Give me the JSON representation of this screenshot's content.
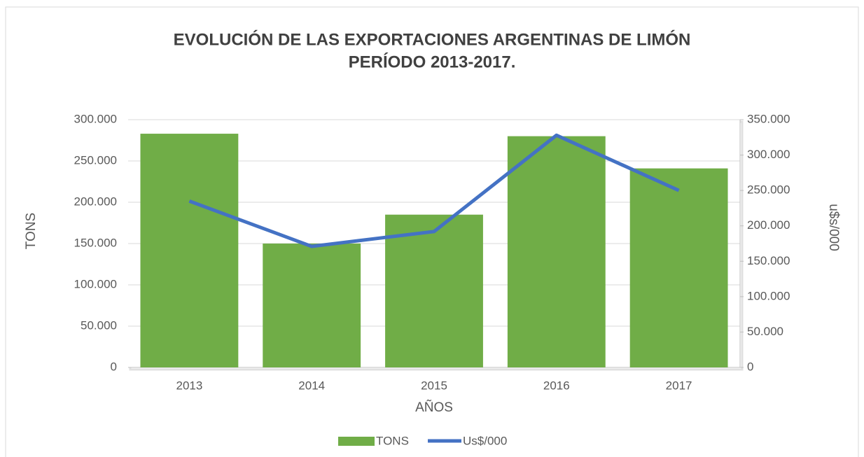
{
  "chart_data": {
    "type": "bar_line",
    "title": [
      "EVOLUCIÓN DE LAS EXPORTACIONES ARGENTINAS DE LIMÓN",
      "PERÍODO 2013-2017."
    ],
    "xlabel": "AÑOS",
    "ylabel": "TONS",
    "y2label": "u$s/000",
    "categories": [
      "2013",
      "2014",
      "2015",
      "2016",
      "2017"
    ],
    "series": [
      {
        "name": "TONS",
        "type": "bar",
        "color": "#70ad47",
        "values": [
          283000,
          150000,
          185000,
          280000,
          241000
        ]
      },
      {
        "name": "Us$/000",
        "type": "line",
        "axis": "y2",
        "color": "#4472c4",
        "values": [
          235000,
          171000,
          192000,
          328000,
          250000
        ]
      }
    ],
    "ylim": [
      0,
      300000
    ],
    "yticks": [
      0,
      {
        "value": 50000,
        "label": "50.000"
      },
      {
        "value": 100000,
        "label": "100.000"
      },
      {
        "value": 150000,
        "label": "150.000"
      },
      {
        "value": 200000,
        "label": "200.000"
      },
      {
        "value": 250000,
        "label": "250.000"
      },
      {
        "value": 300000,
        "label": "300.000"
      }
    ],
    "y2lim": [
      0,
      350000
    ],
    "y2ticks": [
      0,
      {
        "value": 50000,
        "label": "50.000"
      },
      {
        "value": 100000,
        "label": "100.000"
      },
      {
        "value": 150000,
        "label": "150.000"
      },
      {
        "value": 200000,
        "label": "200.000"
      },
      {
        "value": 250000,
        "label": "250.000"
      },
      {
        "value": 300000,
        "label": "300.000"
      },
      {
        "value": 350000,
        "label": "350.000"
      }
    ],
    "grid": true,
    "legend": "bottom"
  }
}
